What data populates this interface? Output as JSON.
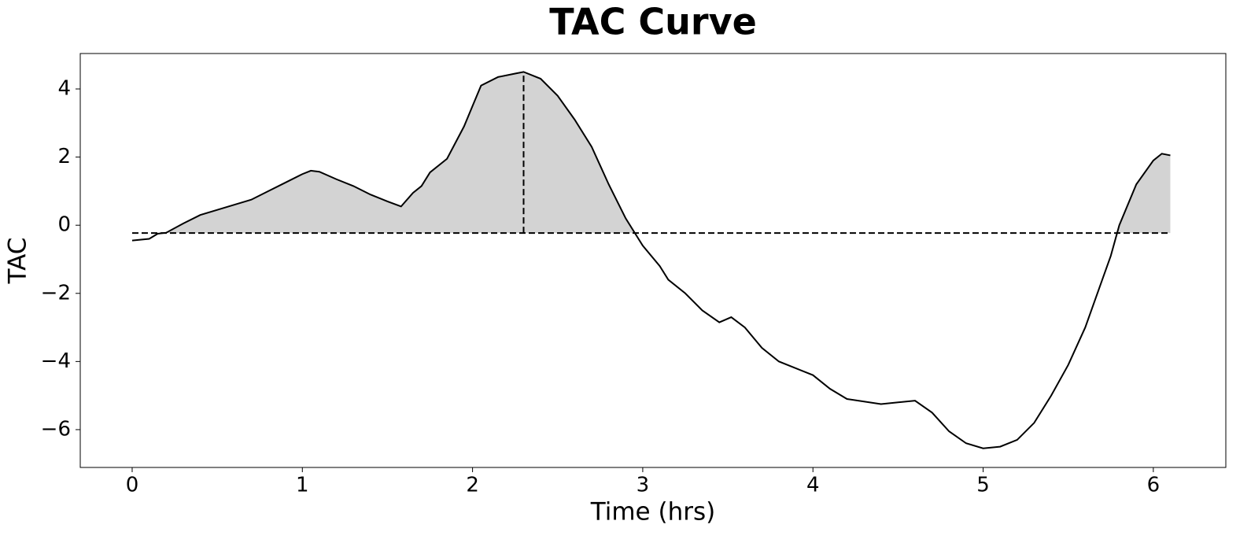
{
  "chart_data": {
    "type": "line",
    "title": "TAC Curve",
    "x_label": "Time (hrs)",
    "y_label": "TAC",
    "x": [
      0,
      0.1,
      0.15,
      0.2,
      0.3,
      0.4,
      0.5,
      0.6,
      0.7,
      0.8,
      0.9,
      1.0,
      1.05,
      1.1,
      1.2,
      1.3,
      1.4,
      1.5,
      1.58,
      1.65,
      1.7,
      1.75,
      1.85,
      1.95,
      2.0,
      2.05,
      2.15,
      2.25,
      2.3,
      2.4,
      2.5,
      2.6,
      2.7,
      2.8,
      2.9,
      3.0,
      3.1,
      3.15,
      3.25,
      3.35,
      3.45,
      3.52,
      3.6,
      3.7,
      3.8,
      4.0,
      4.1,
      4.2,
      4.4,
      4.6,
      4.7,
      4.8,
      4.9,
      5.0,
      5.1,
      5.2,
      5.3,
      5.4,
      5.5,
      5.6,
      5.7,
      5.75,
      5.8,
      5.9,
      6.0,
      6.05,
      6.1
    ],
    "values": [
      -0.45,
      -0.4,
      -0.25,
      -0.22,
      0.05,
      0.3,
      0.45,
      0.6,
      0.75,
      1.0,
      1.25,
      1.5,
      1.6,
      1.57,
      1.35,
      1.15,
      0.9,
      0.7,
      0.55,
      0.95,
      1.15,
      1.55,
      1.95,
      2.9,
      3.5,
      4.1,
      4.35,
      4.45,
      4.5,
      4.3,
      3.8,
      3.1,
      2.3,
      1.2,
      0.2,
      -0.6,
      -1.2,
      -1.6,
      -2.0,
      -2.5,
      -2.85,
      -2.7,
      -3.0,
      -3.6,
      -4.0,
      -4.4,
      -4.8,
      -5.1,
      -5.25,
      -5.15,
      -5.5,
      -6.05,
      -6.4,
      -6.55,
      -6.5,
      -6.3,
      -5.8,
      -5.0,
      -4.1,
      -3.0,
      -1.6,
      -0.9,
      0.0,
      1.2,
      1.9,
      2.1,
      2.05
    ],
    "color": "#000000",
    "fill_color": "#d3d3d3",
    "baseline": -0.23,
    "peak_x": 2.3,
    "xlim": [
      -0.305,
      6.426
    ],
    "xticks": [
      0,
      1,
      2,
      3,
      4,
      5,
      6
    ],
    "ylim": [
      -7.11,
      5.04
    ],
    "yticks": [
      {
        "value": -6,
        "label": "−6"
      },
      {
        "value": -4,
        "label": "−4"
      },
      {
        "value": -2,
        "label": "−2"
      },
      0,
      2,
      4
    ]
  }
}
